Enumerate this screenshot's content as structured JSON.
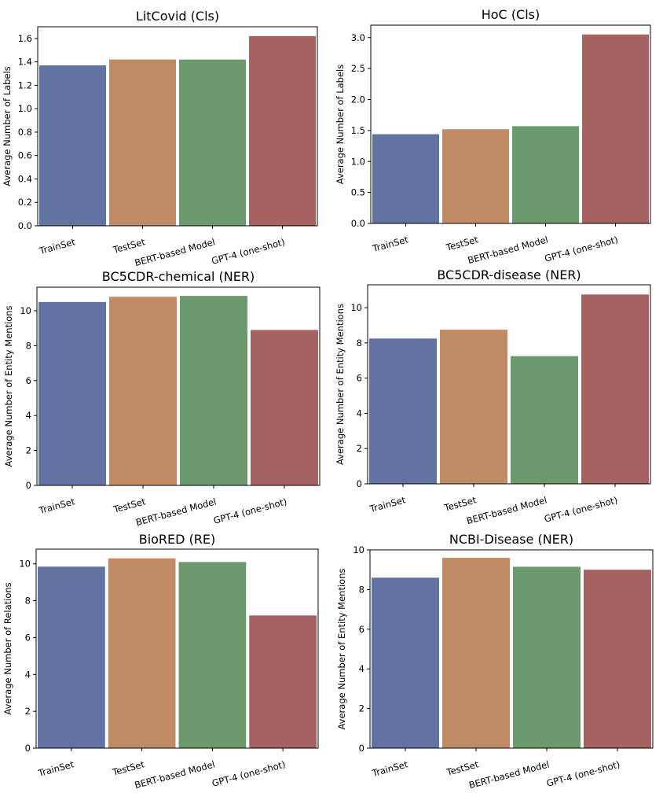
{
  "chart_data": [
    {
      "type": "bar",
      "title": "LitCovid (Cls)",
      "ylabel": "Average Number of Labels",
      "categories": [
        "TrainSet",
        "TestSet",
        "BERT-based Model",
        "GPT-4 (one-shot)"
      ],
      "values": [
        1.37,
        1.42,
        1.42,
        1.62
      ],
      "ylim": [
        0,
        1.7
      ],
      "yticks": [
        0.0,
        0.2,
        0.4,
        0.6,
        0.8,
        1.0,
        1.2,
        1.4,
        1.6
      ],
      "ytick_labels": [
        "0.0",
        "0.2",
        "0.4",
        "0.6",
        "0.8",
        "1.0",
        "1.2",
        "1.4",
        "1.6"
      ],
      "colors": [
        "#6073a1",
        "#c08b65",
        "#6a9a6d",
        "#a66261"
      ]
    },
    {
      "type": "bar",
      "title": "HoC (Cls)",
      "ylabel": "Average Number of Labels",
      "categories": [
        "TrainSet",
        "TestSet",
        "BERT-based Model",
        "GPT-4 (one-shot)"
      ],
      "values": [
        1.44,
        1.52,
        1.57,
        3.05
      ],
      "ylim": [
        0,
        3.2
      ],
      "yticks": [
        0.0,
        0.5,
        1.0,
        1.5,
        2.0,
        2.5,
        3.0
      ],
      "ytick_labels": [
        "0.0",
        "0.5",
        "1.0",
        "1.5",
        "2.0",
        "2.5",
        "3.0"
      ],
      "colors": [
        "#6073a1",
        "#c08b65",
        "#6a9a6d",
        "#a66261"
      ]
    },
    {
      "type": "bar",
      "title": "BC5CDR-chemical (NER)",
      "ylabel": "Average Number of Entity Mentions",
      "categories": [
        "TrainSet",
        "TestSet",
        "BERT-based Model",
        "GPT-4 (one-shot)"
      ],
      "values": [
        10.5,
        10.8,
        10.85,
        8.9
      ],
      "ylim": [
        0,
        11.35
      ],
      "yticks": [
        0,
        2,
        4,
        6,
        8,
        10
      ],
      "ytick_labels": [
        "0",
        "2",
        "4",
        "6",
        "8",
        "10"
      ],
      "colors": [
        "#6073a1",
        "#c08b65",
        "#6a9a6d",
        "#a66261"
      ]
    },
    {
      "type": "bar",
      "title": "BC5CDR-disease (NER)",
      "ylabel": "Average Number of Entity Mentions",
      "categories": [
        "TrainSet",
        "TestSet",
        "BERT-based Model",
        "GPT-4 (one-shot)"
      ],
      "values": [
        8.25,
        8.75,
        7.25,
        10.75
      ],
      "ylim": [
        0,
        11.3
      ],
      "yticks": [
        0,
        2,
        4,
        6,
        8,
        10
      ],
      "ytick_labels": [
        "0",
        "2",
        "4",
        "6",
        "8",
        "10"
      ],
      "colors": [
        "#6073a1",
        "#c08b65",
        "#6a9a6d",
        "#a66261"
      ]
    },
    {
      "type": "bar",
      "title": "BioRED (RE)",
      "ylabel": "Average Number of Relations",
      "categories": [
        "TrainSet",
        "TestSet",
        "BERT-based Model",
        "GPT-4 (one-shot)"
      ],
      "values": [
        9.85,
        10.3,
        10.1,
        7.2
      ],
      "ylim": [
        0,
        10.8
      ],
      "yticks": [
        0,
        2,
        4,
        6,
        8,
        10
      ],
      "ytick_labels": [
        "0",
        "2",
        "4",
        "6",
        "8",
        "10"
      ],
      "colors": [
        "#6073a1",
        "#c08b65",
        "#6a9a6d",
        "#a66261"
      ]
    },
    {
      "type": "bar",
      "title": "NCBI-Disease (NER)",
      "ylabel": "Average Number of Entity Mentions",
      "categories": [
        "TrainSet",
        "TestSet",
        "BERT-based Model",
        "GPT-4 (one-shot)"
      ],
      "values": [
        8.6,
        9.6,
        9.15,
        9.0
      ],
      "ylim": [
        0,
        10.0
      ],
      "yticks": [
        0,
        2,
        4,
        6,
        8,
        10
      ],
      "ytick_labels": [
        "0",
        "2",
        "4",
        "6",
        "8",
        "10"
      ],
      "colors": [
        "#6073a1",
        "#c08b65",
        "#6a9a6d",
        "#a66261"
      ]
    }
  ]
}
